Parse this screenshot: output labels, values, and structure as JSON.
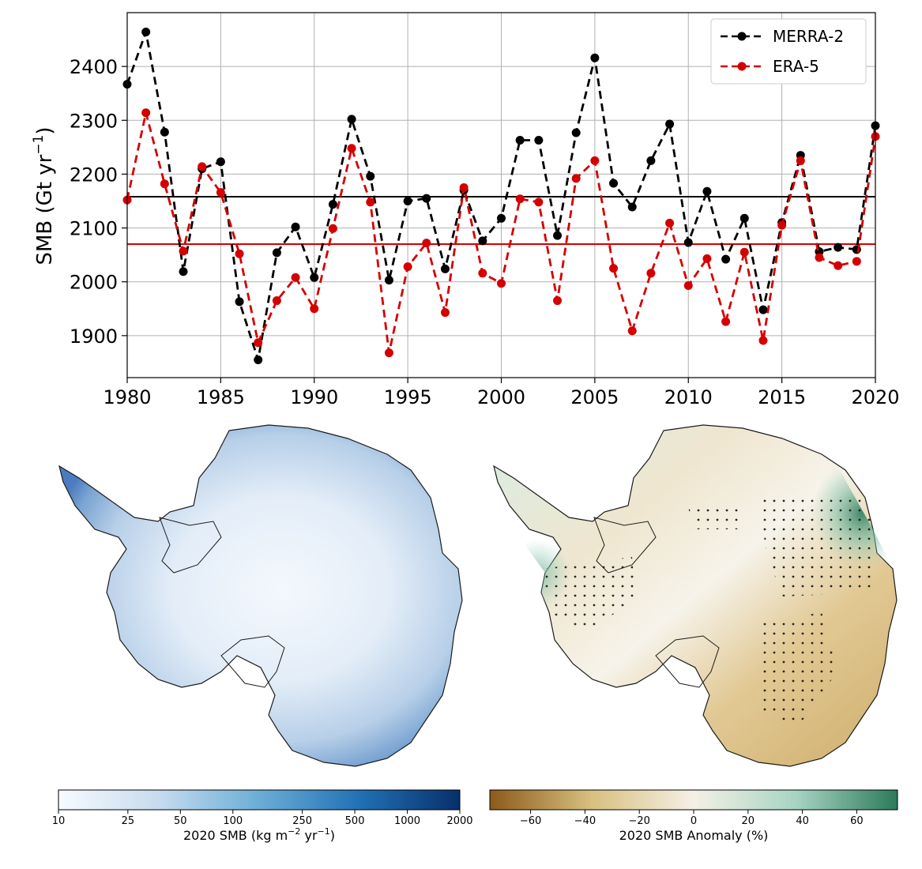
{
  "chart_data": [
    {
      "type": "line",
      "ylabel": "SMB (Gt yr",
      "ylabel_sup": "−1",
      "ylabel_end": ")",
      "xlim": [
        1980,
        2020
      ],
      "ylim": [
        1822,
        2500
      ],
      "x_ticks": [
        1980,
        1985,
        1990,
        1995,
        2000,
        2005,
        2010,
        2015,
        2020
      ],
      "y_ticks": [
        1900,
        2000,
        2100,
        2200,
        2300,
        2400
      ],
      "grid": true,
      "legend_position": "top-right",
      "x": [
        1980,
        1981,
        1982,
        1983,
        1984,
        1985,
        1986,
        1987,
        1988,
        1989,
        1990,
        1991,
        1992,
        1993,
        1994,
        1995,
        1996,
        1997,
        1998,
        1999,
        2000,
        2001,
        2002,
        2003,
        2004,
        2005,
        2006,
        2007,
        2008,
        2009,
        2010,
        2011,
        2012,
        2013,
        2014,
        2015,
        2016,
        2017,
        2018,
        2019,
        2020
      ],
      "series": [
        {
          "name": "MERRA-2",
          "color": "#000000",
          "values": [
            2367,
            2464,
            2278,
            2019,
            2210,
            2223,
            1963,
            1855,
            2054,
            2102,
            2008,
            2144,
            2302,
            2196,
            2003,
            2150,
            2155,
            2024,
            2170,
            2076,
            2118,
            2263,
            2263,
            2086,
            2277,
            2416,
            2183,
            2139,
            2225,
            2293,
            2073,
            2168,
            2042,
            2118,
            1948,
            2110,
            2235,
            2056,
            2064,
            2060,
            2290
          ],
          "mean": 2158
        },
        {
          "name": "ERA-5",
          "color": "#d40000",
          "values": [
            2152,
            2314,
            2182,
            2057,
            2214,
            2166,
            2052,
            1887,
            1965,
            2008,
            1950,
            2099,
            2248,
            2148,
            1868,
            2028,
            2072,
            1943,
            2175,
            2016,
            1997,
            2154,
            2148,
            1965,
            2192,
            2225,
            2025,
            1909,
            2016,
            2109,
            1993,
            2043,
            1926,
            2055,
            1891,
            2105,
            2225,
            2045,
            2030,
            2038,
            2270
          ],
          "mean": 2070
        }
      ]
    },
    {
      "type": "heatmap",
      "colorbar_label": "2020 SMB (kg m",
      "colorbar_sup1": "−2",
      "colorbar_mid": " yr",
      "colorbar_sup2": "−1",
      "colorbar_end": ")",
      "colorbar_scale": "log",
      "colorbar_ticks": [
        "10",
        "25",
        "50",
        "100",
        "250",
        "500",
        "1000",
        "2000"
      ],
      "colormap": [
        "#f7fbff",
        "#c6dbef",
        "#6baed6",
        "#2171b5",
        "#08306b"
      ]
    },
    {
      "type": "heatmap",
      "colorbar_label": "2020 SMB Anomaly (%)",
      "colorbar_ticks": [
        "−60",
        "−40",
        "−20",
        "0",
        "20",
        "40",
        "60"
      ],
      "colorbar_range": [
        -75,
        75
      ],
      "colormap": [
        "#8c5a1a",
        "#d8c07f",
        "#f5f0e6",
        "#a7d4c4",
        "#2c7a5a"
      ]
    }
  ]
}
